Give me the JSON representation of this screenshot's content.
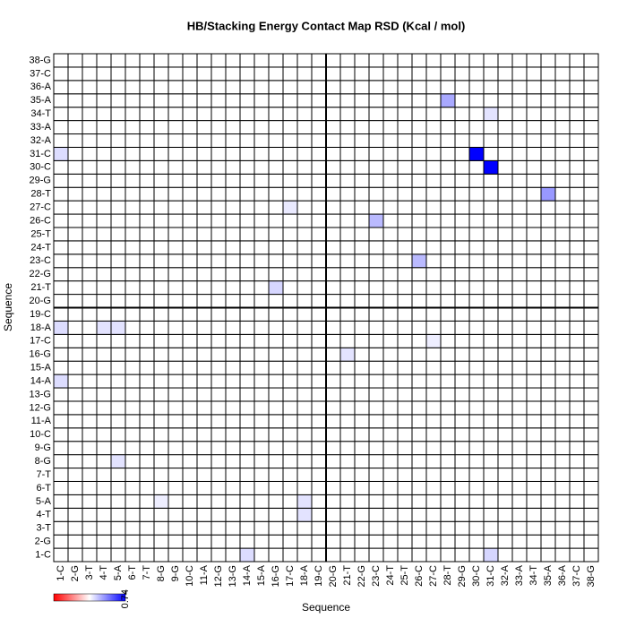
{
  "chart_data": {
    "type": "heatmap",
    "title": "HB/Stacking Energy Contact Map RSD (Kcal / mol)",
    "x_label": "Sequence",
    "y_label": "Sequence",
    "categories": [
      "1-C",
      "2-G",
      "3-T",
      "4-T",
      "5-A",
      "6-T",
      "7-T",
      "8-G",
      "9-G",
      "10-C",
      "11-A",
      "12-G",
      "13-G",
      "14-A",
      "15-A",
      "16-G",
      "17-C",
      "18-A",
      "19-C",
      "20-G",
      "21-T",
      "22-G",
      "23-C",
      "24-T",
      "25-T",
      "26-C",
      "27-C",
      "28-T",
      "29-G",
      "30-C",
      "31-C",
      "32-A",
      "33-A",
      "34-T",
      "35-A",
      "36-A",
      "37-C",
      "38-G"
    ],
    "z": [
      [
        0,
        0,
        0,
        0,
        0,
        0,
        0,
        0,
        0,
        0,
        0,
        0,
        0,
        0.1,
        0,
        0,
        0,
        0,
        0,
        0,
        0,
        0,
        0,
        0,
        0,
        0,
        0,
        0,
        0,
        0,
        0.12,
        0,
        0,
        0,
        0,
        0,
        0,
        0
      ],
      [
        0,
        0,
        0,
        0,
        0,
        0,
        0,
        0,
        0,
        0,
        0,
        0,
        0,
        0,
        0,
        0,
        0,
        0,
        0,
        0,
        0,
        0,
        0,
        0,
        0,
        0,
        0,
        0,
        0,
        0,
        0,
        0,
        0,
        0,
        0,
        0,
        0,
        0
      ],
      [
        0,
        0,
        0,
        0,
        0,
        0,
        0,
        0,
        0,
        0,
        0,
        0,
        0,
        0,
        0,
        0,
        0,
        0,
        0,
        0,
        0,
        0,
        0,
        0,
        0,
        0,
        0,
        0,
        0,
        0,
        0,
        0,
        0,
        0,
        0,
        0,
        0,
        0
      ],
      [
        0,
        0,
        0,
        0,
        0,
        0,
        0,
        0,
        0,
        0,
        0,
        0,
        0,
        0,
        0,
        0,
        0,
        0.08,
        0,
        0,
        0,
        0,
        0,
        0,
        0,
        0,
        0,
        0,
        0,
        0,
        0,
        0,
        0,
        0,
        0,
        0,
        0,
        0
      ],
      [
        0,
        0,
        0,
        0,
        0,
        0,
        0,
        0.05,
        0,
        0,
        0,
        0,
        0,
        0,
        0,
        0,
        0,
        0.08,
        0,
        0,
        0,
        0,
        0,
        0,
        0,
        0,
        0,
        0,
        0,
        0,
        0,
        0,
        0,
        0,
        0,
        0,
        0,
        0
      ],
      [
        0,
        0,
        0,
        0,
        0,
        0,
        0,
        0,
        0,
        0,
        0,
        0,
        0,
        0,
        0,
        0,
        0,
        0,
        0,
        0,
        0,
        0,
        0,
        0,
        0,
        0,
        0,
        0,
        0,
        0,
        0,
        0,
        0,
        0,
        0,
        0,
        0,
        0
      ],
      [
        0,
        0,
        0,
        0,
        0,
        0,
        0,
        0,
        0,
        0,
        0,
        0,
        0,
        0,
        0,
        0,
        0,
        0,
        0,
        0,
        0,
        0,
        0,
        0,
        0,
        0,
        0,
        0,
        0,
        0,
        0,
        0,
        0,
        0,
        0,
        0,
        0,
        0
      ],
      [
        0,
        0,
        0,
        0,
        0.08,
        0,
        0,
        0,
        0,
        0,
        0,
        0,
        0,
        0,
        0,
        0,
        0,
        0,
        0,
        0,
        0,
        0,
        0,
        0,
        0,
        0,
        0,
        0,
        0,
        0,
        0,
        0,
        0,
        0,
        0,
        0,
        0,
        0
      ],
      [
        0,
        0,
        0,
        0,
        0,
        0,
        0,
        0,
        0,
        0,
        0,
        0,
        0,
        0,
        0,
        0,
        0,
        0,
        0,
        0,
        0,
        0,
        0,
        0,
        0,
        0,
        0,
        0,
        0,
        0,
        0,
        0,
        0,
        0,
        0,
        0,
        0,
        0
      ],
      [
        0,
        0,
        0,
        0,
        0,
        0,
        0,
        0,
        0,
        0,
        0,
        0,
        0,
        0,
        0,
        0,
        0,
        0,
        0,
        0,
        0,
        0,
        0,
        0,
        0,
        0,
        0,
        0,
        0,
        0,
        0,
        0,
        0,
        0,
        0,
        0,
        0,
        0
      ],
      [
        0,
        0,
        0,
        0,
        0,
        0,
        0,
        0,
        0,
        0,
        0,
        0,
        0,
        0,
        0,
        0,
        0,
        0,
        0,
        0,
        0,
        0,
        0,
        0,
        0,
        0,
        0,
        0,
        0,
        0,
        0,
        0,
        0,
        0,
        0,
        0,
        0,
        0
      ],
      [
        0,
        0,
        0,
        0,
        0,
        0,
        0,
        0,
        0,
        0,
        0,
        0,
        0,
        0,
        0,
        0,
        0,
        0,
        0,
        0,
        0,
        0,
        0,
        0,
        0,
        0,
        0,
        0,
        0,
        0,
        0,
        0,
        0,
        0,
        0,
        0,
        0,
        0
      ],
      [
        0,
        0,
        0,
        0,
        0,
        0,
        0,
        0,
        0,
        0,
        0,
        0,
        0,
        0,
        0,
        0,
        0,
        0,
        0,
        0,
        0,
        0,
        0,
        0,
        0,
        0,
        0,
        0,
        0,
        0,
        0,
        0,
        0,
        0,
        0,
        0,
        0,
        0
      ],
      [
        0.1,
        0,
        0,
        0,
        0,
        0,
        0,
        0,
        0,
        0,
        0,
        0,
        0,
        0,
        0,
        0,
        0,
        0,
        0,
        0,
        0,
        0,
        0,
        0,
        0,
        0,
        0,
        0,
        0,
        0,
        0,
        0,
        0,
        0,
        0,
        0,
        0,
        0
      ],
      [
        0,
        0,
        0,
        0,
        0,
        0,
        0,
        0,
        0,
        0,
        0,
        0,
        0,
        0,
        0,
        0,
        0,
        0,
        0,
        0,
        0,
        0,
        0,
        0,
        0,
        0,
        0,
        0,
        0,
        0,
        0,
        0,
        0,
        0,
        0,
        0,
        0,
        0
      ],
      [
        0,
        0,
        0,
        0,
        0,
        0,
        0,
        0,
        0,
        0,
        0,
        0,
        0,
        0,
        0,
        0,
        0,
        0,
        0,
        0,
        0.08,
        0,
        0,
        0,
        0,
        0,
        0,
        0,
        0,
        0,
        0,
        0,
        0,
        0,
        0,
        0,
        0,
        0
      ],
      [
        0,
        0,
        0,
        0,
        0,
        0,
        0,
        0,
        0,
        0,
        0,
        0,
        0,
        0,
        0,
        0,
        0,
        0,
        0,
        0,
        0,
        0,
        0,
        0,
        0,
        0,
        0.05,
        0,
        0,
        0,
        0,
        0,
        0,
        0,
        0,
        0,
        0,
        0
      ],
      [
        0.1,
        0,
        0,
        0.08,
        0.08,
        0,
        0,
        0,
        0,
        0,
        0,
        0,
        0,
        0,
        0,
        0,
        0,
        0,
        0,
        0,
        0,
        0,
        0,
        0,
        0,
        0,
        0,
        0,
        0,
        0,
        0,
        0,
        0,
        0,
        0,
        0,
        0,
        0
      ],
      [
        0,
        0,
        0,
        0,
        0,
        0,
        0,
        0,
        0,
        0,
        0,
        0,
        0,
        0,
        0,
        0,
        0,
        0,
        0,
        0,
        0,
        0,
        0,
        0,
        0,
        0,
        0,
        0,
        0,
        0,
        0,
        0,
        0,
        0,
        0,
        0,
        0,
        0
      ],
      [
        0,
        0,
        0,
        0,
        0,
        0,
        0,
        0,
        0,
        0,
        0,
        0,
        0,
        0,
        0,
        0,
        0,
        0,
        0,
        0,
        0,
        0,
        0,
        0,
        0,
        0,
        0,
        0,
        0,
        0,
        0,
        0,
        0,
        0,
        0,
        0,
        0,
        0
      ],
      [
        0,
        0,
        0,
        0,
        0,
        0,
        0,
        0,
        0,
        0,
        0,
        0,
        0,
        0,
        0,
        0.12,
        0,
        0,
        0,
        0,
        0,
        0,
        0,
        0,
        0,
        0,
        0,
        0,
        0,
        0,
        0,
        0,
        0,
        0,
        0,
        0,
        0,
        0
      ],
      [
        0,
        0,
        0,
        0,
        0,
        0,
        0,
        0,
        0,
        0,
        0,
        0,
        0,
        0,
        0,
        0,
        0,
        0,
        0,
        0,
        0,
        0,
        0,
        0,
        0,
        0,
        0,
        0,
        0,
        0,
        0,
        0,
        0,
        0,
        0,
        0,
        0,
        0
      ],
      [
        0,
        0,
        0,
        0,
        0,
        0,
        0,
        0,
        0,
        0,
        0,
        0,
        0,
        0,
        0,
        0,
        0,
        0,
        0,
        0,
        0,
        0,
        0,
        0,
        0,
        0.2,
        0,
        0,
        0,
        0,
        0,
        0,
        0,
        0,
        0,
        0,
        0,
        0
      ],
      [
        0,
        0,
        0,
        0,
        0,
        0,
        0,
        0,
        0,
        0,
        0,
        0,
        0,
        0,
        0,
        0,
        0,
        0,
        0,
        0,
        0,
        0,
        0,
        0,
        0,
        0,
        0,
        0,
        0,
        0,
        0,
        0,
        0,
        0,
        0,
        0,
        0,
        0
      ],
      [
        0,
        0,
        0,
        0,
        0,
        0,
        0,
        0,
        0,
        0,
        0,
        0,
        0,
        0,
        0,
        0,
        0,
        0,
        0,
        0,
        0,
        0,
        0,
        0,
        0,
        0,
        0,
        0,
        0,
        0,
        0,
        0,
        0,
        0,
        0,
        0,
        0,
        0
      ],
      [
        0,
        0,
        0,
        0,
        0,
        0,
        0,
        0,
        0,
        0,
        0,
        0,
        0,
        0,
        0,
        0,
        0,
        0,
        0,
        0,
        0,
        0,
        0.2,
        0,
        0,
        0,
        0,
        0,
        0,
        0,
        0,
        0,
        0,
        0,
        0,
        0,
        0,
        0
      ],
      [
        0,
        0,
        0,
        0,
        0,
        0,
        0,
        0,
        0,
        0,
        0,
        0,
        0,
        0,
        0,
        0,
        0.06,
        0,
        0,
        0,
        0,
        0,
        0,
        0,
        0,
        0,
        0,
        0,
        0,
        0,
        0,
        0,
        0,
        0,
        0,
        0,
        0,
        0
      ],
      [
        0,
        0,
        0,
        0,
        0,
        0,
        0,
        0,
        0,
        0,
        0,
        0,
        0,
        0,
        0,
        0,
        0,
        0,
        0,
        0,
        0,
        0,
        0,
        0,
        0,
        0,
        0,
        0,
        0,
        0,
        0,
        0,
        0,
        0,
        0.3,
        0,
        0,
        0
      ],
      [
        0,
        0,
        0,
        0,
        0,
        0,
        0,
        0,
        0,
        0,
        0,
        0,
        0,
        0,
        0,
        0,
        0,
        0,
        0,
        0,
        0,
        0,
        0,
        0,
        0,
        0,
        0,
        0,
        0,
        0,
        0,
        0,
        0,
        0,
        0,
        0,
        0,
        0
      ],
      [
        0,
        0,
        0,
        0,
        0,
        0,
        0,
        0,
        0,
        0,
        0,
        0,
        0,
        0,
        0,
        0,
        0,
        0,
        0,
        0,
        0,
        0,
        0,
        0,
        0,
        0,
        0,
        0,
        0,
        0,
        0.74,
        0,
        0,
        0,
        0,
        0,
        0,
        0
      ],
      [
        0.1,
        0,
        0,
        0,
        0,
        0,
        0,
        0,
        0,
        0,
        0,
        0,
        0,
        0,
        0,
        0,
        0,
        0,
        0,
        0,
        0,
        0,
        0,
        0,
        0,
        0,
        0,
        0,
        0,
        0.74,
        0,
        0,
        0,
        0,
        0,
        0,
        0,
        0
      ],
      [
        0,
        0,
        0,
        0,
        0,
        0,
        0,
        0,
        0,
        0,
        0,
        0,
        0,
        0,
        0,
        0,
        0,
        0,
        0,
        0,
        0,
        0,
        0,
        0,
        0,
        0,
        0,
        0,
        0,
        0,
        0,
        0,
        0,
        0,
        0,
        0,
        0,
        0
      ],
      [
        0,
        0,
        0,
        0,
        0,
        0,
        0,
        0,
        0,
        0,
        0,
        0,
        0,
        0,
        0,
        0,
        0,
        0,
        0,
        0,
        0,
        0,
        0,
        0,
        0,
        0,
        0,
        0,
        0,
        0,
        0,
        0,
        0,
        0,
        0,
        0,
        0,
        0
      ],
      [
        0,
        0,
        0,
        0,
        0,
        0,
        0,
        0,
        0,
        0,
        0,
        0,
        0,
        0,
        0,
        0,
        0,
        0,
        0,
        0,
        0,
        0,
        0,
        0,
        0,
        0,
        0,
        0,
        0,
        0,
        0.08,
        0,
        0,
        0,
        0,
        0,
        0,
        0
      ],
      [
        0,
        0,
        0,
        0,
        0,
        0,
        0,
        0,
        0,
        0,
        0,
        0,
        0,
        0,
        0,
        0,
        0,
        0,
        0,
        0,
        0,
        0,
        0,
        0,
        0,
        0,
        0,
        0.25,
        0,
        0,
        0,
        0,
        0,
        0,
        0,
        0,
        0,
        0
      ],
      [
        0,
        0,
        0,
        0,
        0,
        0,
        0,
        0,
        0,
        0,
        0,
        0,
        0,
        0,
        0,
        0,
        0,
        0,
        0,
        0,
        0,
        0,
        0,
        0,
        0,
        0,
        0,
        0,
        0,
        0,
        0,
        0,
        0,
        0,
        0,
        0,
        0,
        0
      ],
      [
        0,
        0,
        0,
        0,
        0,
        0,
        0,
        0,
        0,
        0,
        0,
        0,
        0,
        0,
        0,
        0,
        0,
        0,
        0,
        0,
        0,
        0,
        0,
        0,
        0,
        0,
        0,
        0,
        0,
        0,
        0,
        0,
        0,
        0,
        0,
        0,
        0,
        0
      ],
      [
        0,
        0,
        0,
        0,
        0,
        0,
        0,
        0,
        0,
        0,
        0,
        0,
        0,
        0,
        0,
        0,
        0,
        0,
        0,
        0,
        0,
        0,
        0,
        0,
        0,
        0,
        0,
        0,
        0,
        0,
        0,
        0,
        0,
        0,
        0,
        0,
        0,
        0
      ]
    ],
    "clim": [
      -0.74,
      0.74
    ],
    "colorbar_ticks": [
      0.74
    ],
    "colors": [
      "#ff0000",
      "#ffffff",
      "#0000ff"
    ]
  }
}
